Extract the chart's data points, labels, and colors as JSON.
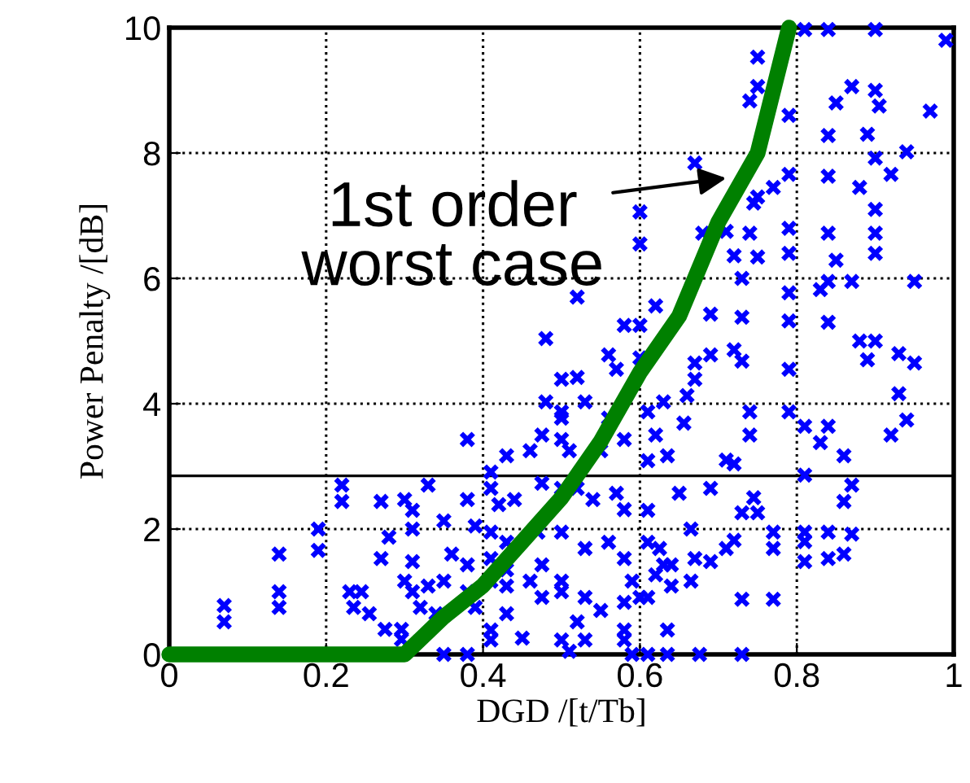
{
  "chart_data": {
    "type": "scatter",
    "xlabel": "DGD /[t/Tb]",
    "ylabel": "Power Penalty /[dB]",
    "xlim": [
      0,
      1
    ],
    "ylim": [
      0,
      10
    ],
    "xticks": [
      0,
      0.2,
      0.4,
      0.6,
      0.8,
      1
    ],
    "yticks": [
      0,
      2,
      4,
      6,
      8,
      10
    ],
    "grid": true,
    "legend": false,
    "ref_lines": [
      {
        "axis": "y",
        "value": 2.85,
        "color": "#000000",
        "line_style": "solid"
      }
    ],
    "annotations": [
      {
        "text": "1st order\nworst case",
        "x": 0.71,
        "y": 7.6
      }
    ],
    "series": [
      {
        "color": "#0000ff",
        "marker": "cross",
        "x": [
          0.07,
          0.07,
          0.14,
          0.14,
          0.14,
          0.19,
          0.19,
          0.22,
          0.22,
          0.23,
          0.245,
          0.235,
          0.255,
          0.27,
          0.27,
          0.28,
          0.275,
          0.296,
          0.296,
          0.3,
          0.31,
          0.31,
          0.33,
          0.31,
          0.3,
          0.31,
          0.35,
          0.38,
          0.35,
          0.38,
          0.48,
          0.88,
          0.9,
          0.89,
          0.93,
          0.95,
          0.93,
          0.94,
          0.92,
          0.81,
          0.84,
          0.83,
          0.86,
          0.79,
          0.79,
          0.81,
          0.87,
          0.86,
          0.81,
          0.81,
          0.81,
          0.84,
          0.87,
          0.84,
          0.86,
          0.73,
          0.77,
          0.77,
          0.77,
          0.745,
          0.73,
          0.75,
          0.71,
          0.72,
          0.69,
          0.72,
          0.71,
          0.69,
          0.67,
          0.665,
          0.635,
          0.58,
          0.58,
          0.55,
          0.52,
          0.5,
          0.53,
          0.59,
          0.61,
          0.635,
          0.676,
          0.73,
          0.72,
          0.73,
          0.69,
          0.67,
          0.67,
          0.74,
          0.74,
          0.66,
          0.635,
          0.62,
          0.61,
          0.65,
          0.61,
          0.625,
          0.665,
          0.58,
          0.6,
          0.62,
          0.64,
          0.81,
          0.84,
          0.9,
          0.99,
          0.75,
          0.75,
          0.74,
          0.87,
          0.9,
          0.905,
          0.85,
          0.79,
          0.97,
          0.84,
          0.89,
          0.9,
          0.94,
          0.92,
          0.84,
          0.79,
          0.67,
          0.75,
          0.77,
          0.88,
          0.745,
          0.9,
          0.6,
          0.68,
          0.71,
          0.74,
          0.9,
          0.79,
          0.79,
          0.84,
          0.85,
          0.9,
          0.6,
          0.75,
          0.72,
          0.73,
          0.87,
          0.84,
          0.95,
          0.79,
          0.83,
          0.58,
          0.6,
          0.62,
          0.69,
          0.73,
          0.79,
          0.84,
          0.52,
          0.5,
          0.52,
          0.56,
          0.57,
          0.6,
          0.5,
          0.53,
          0.56,
          0.61,
          0.63,
          0.656,
          0.51,
          0.55,
          0.58,
          0.61,
          0.52,
          0.54,
          0.57,
          0.58,
          0.5,
          0.53,
          0.56,
          0.58,
          0.63,
          0.64,
          0.5,
          0.53,
          0.59,
          0.61,
          0.38,
          0.41,
          0.42,
          0.44,
          0.475,
          0.5,
          0.39,
          0.41,
          0.43,
          0.47,
          0.36,
          0.38,
          0.41,
          0.43,
          0.475,
          0.33,
          0.35,
          0.38,
          0.41,
          0.43,
          0.46,
          0.5,
          0.32,
          0.34,
          0.39,
          0.43,
          0.475,
          0.41,
          0.41,
          0.45,
          0.48,
          0.5,
          0.475,
          0.5,
          0.46,
          0.43,
          0.41,
          0.51
        ],
        "values": [
          0.78,
          0.52,
          1.6,
          1.0,
          0.75,
          2.0,
          1.66,
          2.7,
          2.44,
          1.0,
          1.0,
          0.75,
          0.65,
          2.44,
          1.53,
          1.87,
          0.4,
          0.4,
          0.24,
          2.47,
          2.3,
          2.0,
          2.7,
          1.48,
          1.17,
          1.0,
          2.13,
          3.43,
          0,
          0,
          5.04,
          5.0,
          5.0,
          4.7,
          4.8,
          4.65,
          4.16,
          3.74,
          3.5,
          3.64,
          3.64,
          3.38,
          3.17,
          3.87,
          4.55,
          2.86,
          2.7,
          2.44,
          1.95,
          1.8,
          1.48,
          1.95,
          1.92,
          1.53,
          1.6,
          0.88,
          0.88,
          1.95,
          1.69,
          2.5,
          2.26,
          2.26,
          3.1,
          3.04,
          2.65,
          1.82,
          1.69,
          1.48,
          1.53,
          1.17,
          0.39,
          0.39,
          0.23,
          0.7,
          0.52,
          0.23,
          0.23,
          0,
          0,
          0,
          0,
          0,
          4.86,
          4.68,
          4.78,
          4.65,
          4.39,
          3.87,
          3.5,
          4.13,
          3.17,
          3.5,
          2.3,
          2.57,
          1.79,
          1.69,
          2.0,
          0.83,
          0.91,
          1.27,
          1.43,
          9.97,
          9.97,
          9.97,
          9.8,
          9.53,
          9.06,
          8.83,
          9.06,
          9.0,
          8.75,
          8.8,
          8.6,
          8.67,
          8.28,
          8.3,
          7.92,
          8.02,
          7.66,
          7.63,
          7.66,
          7.84,
          7.3,
          7.45,
          7.45,
          7.2,
          7.1,
          7.06,
          6.72,
          6.75,
          6.72,
          6.72,
          6.8,
          6.4,
          6.72,
          6.29,
          6.4,
          6.55,
          6.34,
          6.36,
          6.0,
          5.95,
          5.95,
          5.95,
          5.77,
          5.82,
          5.25,
          5.25,
          5.56,
          5.43,
          5.38,
          5.32,
          5.3,
          5.7,
          4.39,
          4.42,
          4.78,
          4.55,
          4.73,
          3.87,
          4.03,
          3.77,
          3.87,
          4.03,
          3.69,
          3.25,
          3.25,
          3.43,
          3.09,
          2.65,
          2.47,
          2.57,
          2.31,
          1.95,
          1.69,
          1.79,
          1.53,
          1.43,
          1.09,
          1.0,
          0.91,
          1.17,
          0.91,
          2.47,
          2.65,
          2.39,
          2.47,
          2.73,
          2.65,
          2.05,
          1.95,
          1.79,
          1.95,
          1.6,
          1.43,
          1.53,
          1.35,
          1.43,
          1.09,
          1.17,
          1.0,
          1.17,
          1.09,
          1.17,
          1.17,
          0.75,
          0.65,
          0.75,
          0.65,
          0.91,
          0.39,
          0.23,
          0.26,
          4.03,
          3.77,
          3.5,
          3.43,
          3.25,
          3.17,
          2.91,
          0.05
        ]
      },
      {
        "type": "line",
        "color": "#008000",
        "line_style": "solid",
        "marker": "none",
        "x": [
          0,
          0.3,
          0.35,
          0.4,
          0.45,
          0.5,
          0.55,
          0.6,
          0.65,
          0.7,
          0.75,
          0.79
        ],
        "values": [
          0,
          0,
          0.6,
          1.1,
          1.8,
          2.5,
          3.4,
          4.5,
          5.4,
          6.9,
          8.0,
          10
        ]
      }
    ]
  }
}
